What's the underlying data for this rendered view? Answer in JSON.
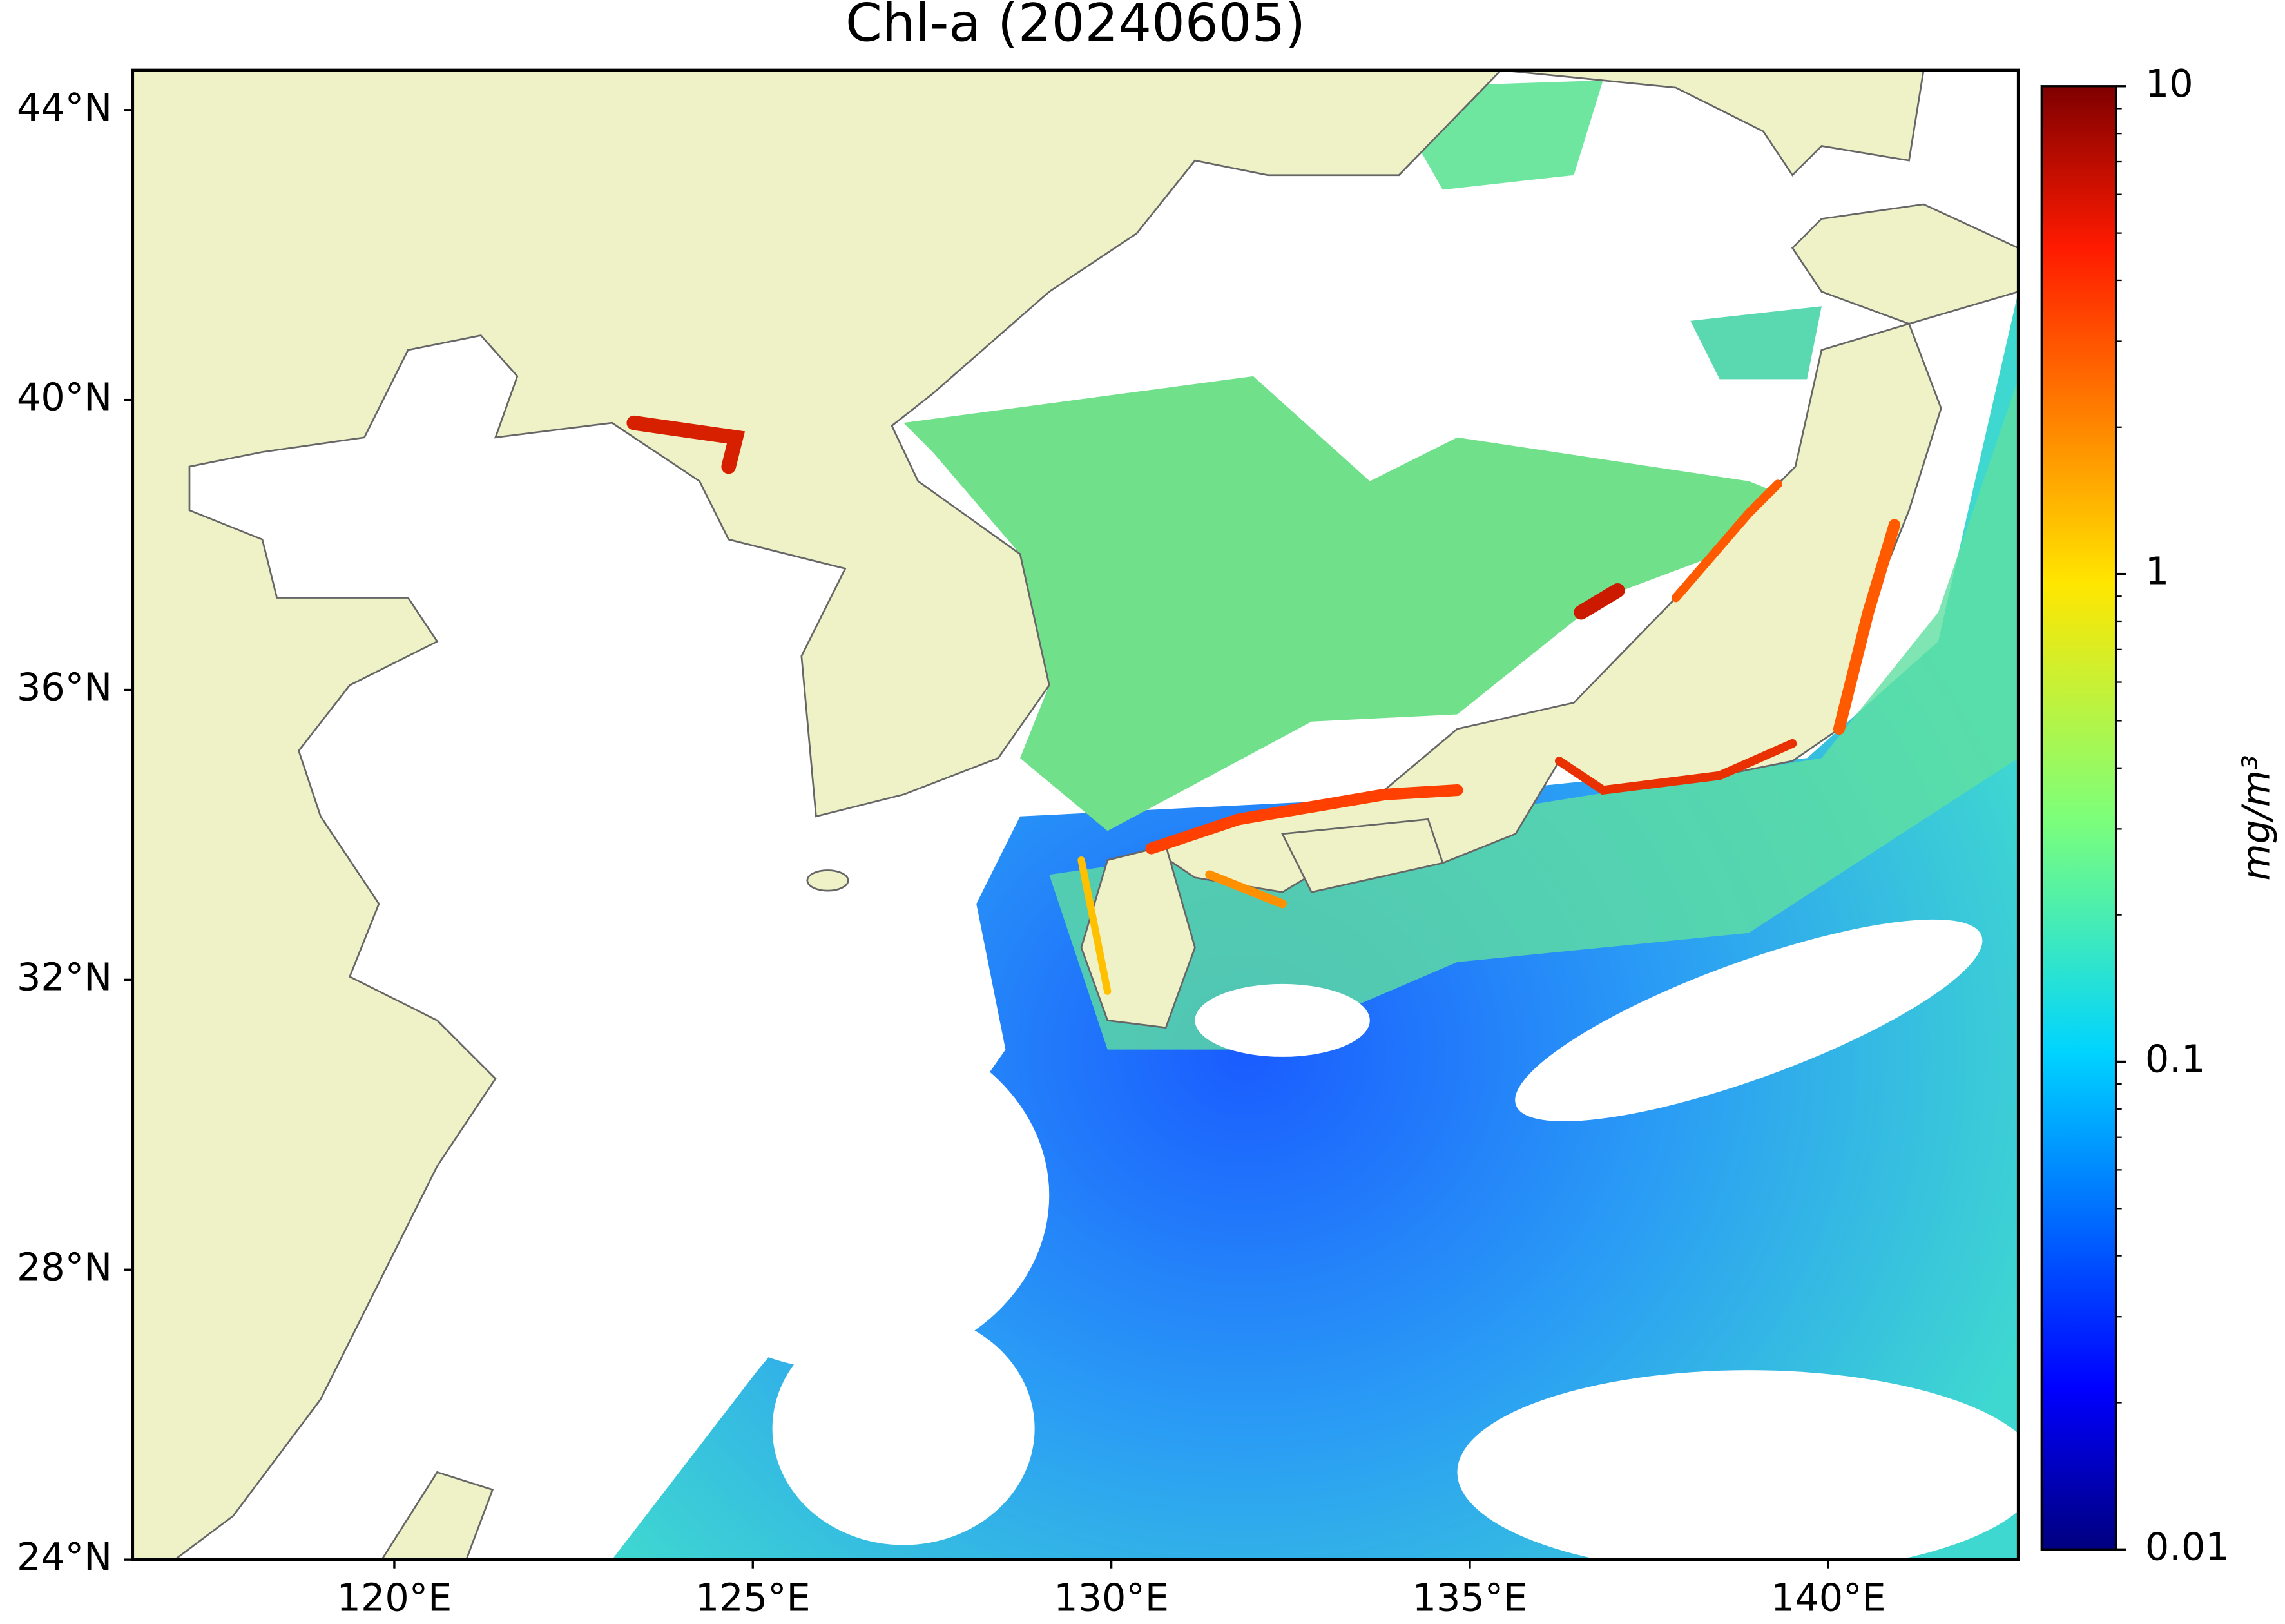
{
  "chart_data": {
    "type": "map",
    "title": "Chl-a (20240605)",
    "xlim": [
      116.35,
      142.65
    ],
    "ylim": [
      24,
      44.55
    ],
    "xticks": [
      {
        "value": 120,
        "label": "120°E"
      },
      {
        "value": 125,
        "label": "125°E"
      },
      {
        "value": 130,
        "label": "130°E"
      },
      {
        "value": 135,
        "label": "135°E"
      },
      {
        "value": 140,
        "label": "140°E"
      }
    ],
    "yticks": [
      {
        "value": 24,
        "label": "24°N"
      },
      {
        "value": 28,
        "label": "28°N"
      },
      {
        "value": 32,
        "label": "32°N"
      },
      {
        "value": 36,
        "label": "36°N"
      },
      {
        "value": 40,
        "label": "40°N"
      },
      {
        "value": 44,
        "label": "44°N"
      }
    ],
    "colorbar": {
      "label": "mg/m³",
      "scale": "log",
      "clim": [
        0.01,
        10
      ],
      "ticks": [
        0.01,
        0.1,
        1,
        10
      ],
      "colormap": "jet"
    }
  }
}
